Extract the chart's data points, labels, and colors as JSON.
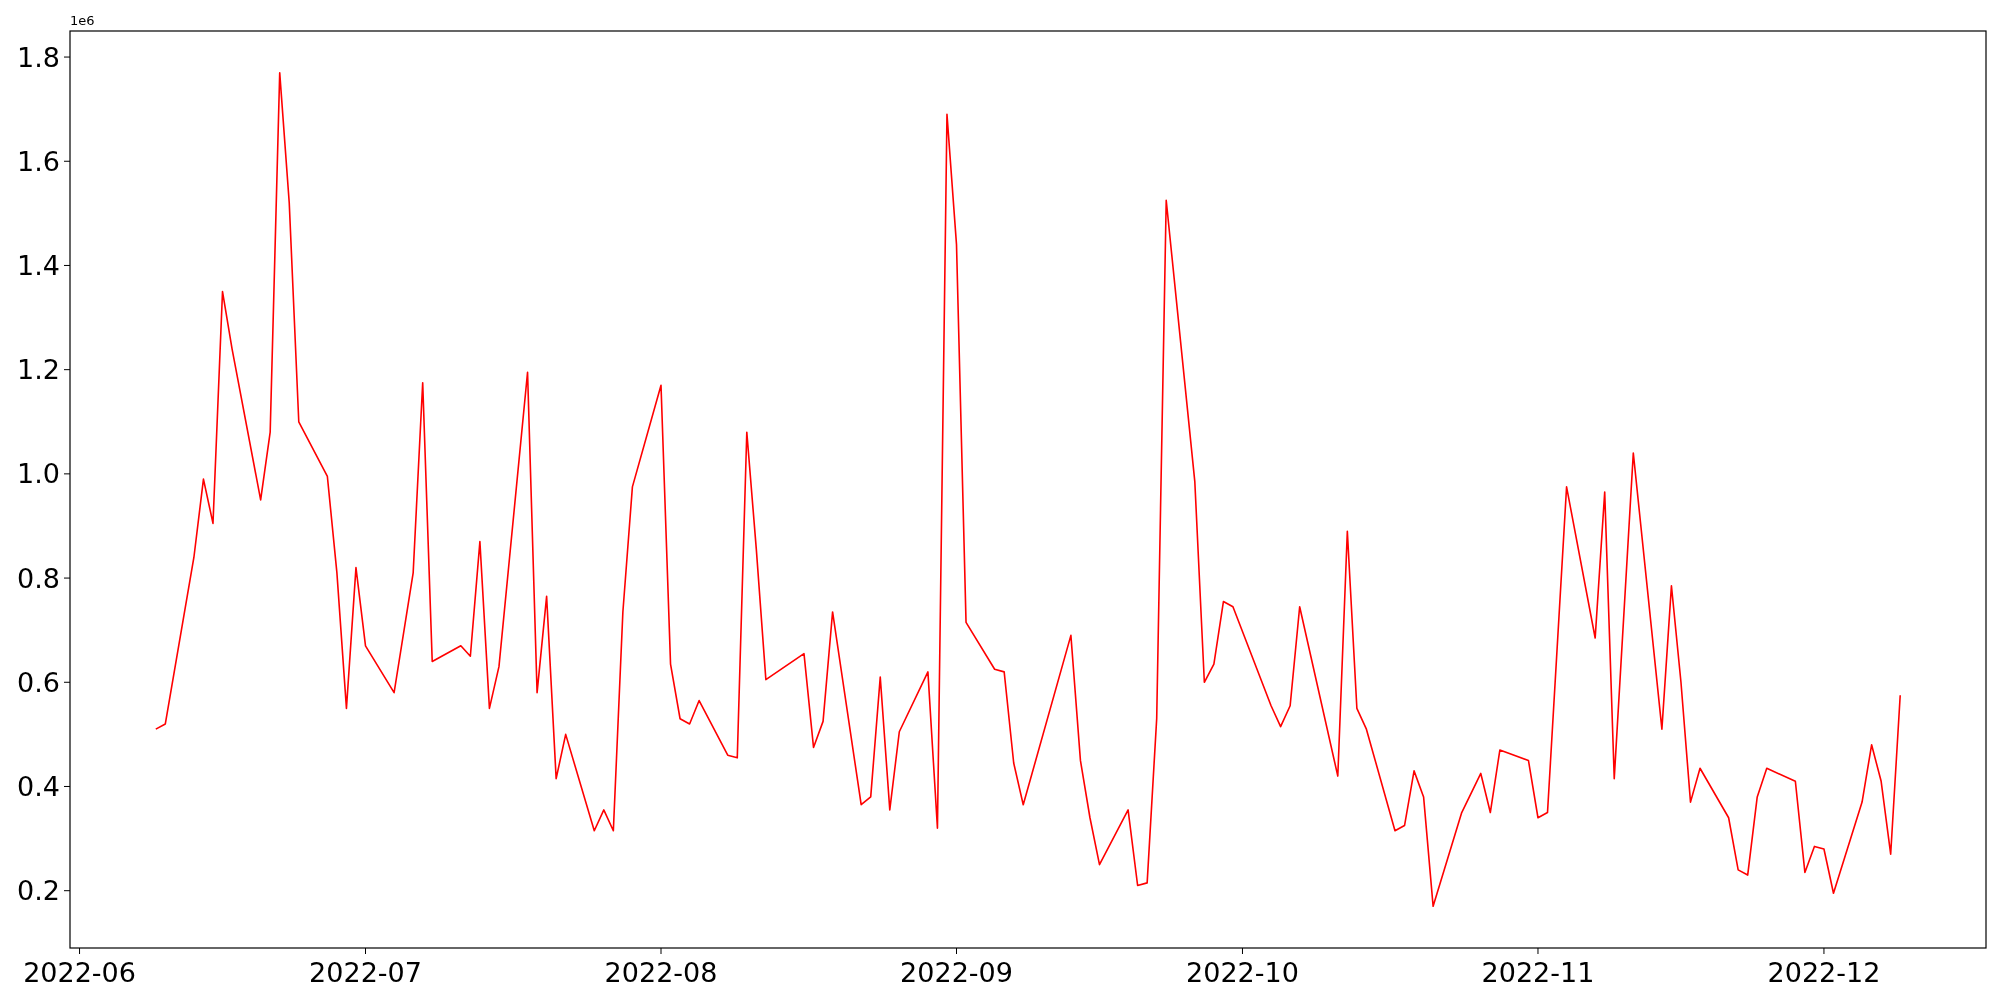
{
  "chart_data": {
    "type": "line",
    "annotations": [
      "1e6"
    ],
    "x": [
      "2022-06-09",
      "2022-06-10",
      "2022-06-13",
      "2022-06-14",
      "2022-06-15",
      "2022-06-16",
      "2022-06-17",
      "2022-06-20",
      "2022-06-21",
      "2022-06-22",
      "2022-06-23",
      "2022-06-24",
      "2022-06-27",
      "2022-06-28",
      "2022-06-29",
      "2022-06-30",
      "2022-07-01",
      "2022-07-04",
      "2022-07-06",
      "2022-07-07",
      "2022-07-08",
      "2022-07-11",
      "2022-07-12",
      "2022-07-13",
      "2022-07-14",
      "2022-07-15",
      "2022-07-18",
      "2022-07-19",
      "2022-07-20",
      "2022-07-21",
      "2022-07-22",
      "2022-07-25",
      "2022-07-26",
      "2022-07-27",
      "2022-07-28",
      "2022-07-29",
      "2022-08-01",
      "2022-08-02",
      "2022-08-03",
      "2022-08-04",
      "2022-08-05",
      "2022-08-08",
      "2022-08-09",
      "2022-08-10",
      "2022-08-11",
      "2022-08-12",
      "2022-08-16",
      "2022-08-17",
      "2022-08-18",
      "2022-08-19",
      "2022-08-22",
      "2022-08-23",
      "2022-08-24",
      "2022-08-25",
      "2022-08-26",
      "2022-08-29",
      "2022-08-30",
      "2022-08-31",
      "2022-09-01",
      "2022-09-02",
      "2022-09-05",
      "2022-09-06",
      "2022-09-07",
      "2022-09-08",
      "2022-09-13",
      "2022-09-14",
      "2022-09-15",
      "2022-09-16",
      "2022-09-19",
      "2022-09-20",
      "2022-09-21",
      "2022-09-22",
      "2022-09-23",
      "2022-09-26",
      "2022-09-27",
      "2022-09-28",
      "2022-09-29",
      "2022-09-30",
      "2022-10-04",
      "2022-10-05",
      "2022-10-06",
      "2022-10-07",
      "2022-10-11",
      "2022-10-12",
      "2022-10-13",
      "2022-10-14",
      "2022-10-17",
      "2022-10-18",
      "2022-10-19",
      "2022-10-20",
      "2022-10-21",
      "2022-10-24",
      "2022-10-26",
      "2022-10-27",
      "2022-10-28",
      "2022-10-31",
      "2022-11-01",
      "2022-11-02",
      "2022-11-04",
      "2022-11-07",
      "2022-11-08",
      "2022-11-09",
      "2022-11-11",
      "2022-11-14",
      "2022-11-15",
      "2022-11-16",
      "2022-11-17",
      "2022-11-18",
      "2022-11-21",
      "2022-11-22",
      "2022-11-23",
      "2022-11-24",
      "2022-11-25",
      "2022-11-28",
      "2022-11-29",
      "2022-11-30",
      "2022-12-01",
      "2022-12-02",
      "2022-12-05",
      "2022-12-06",
      "2022-12-07",
      "2022-12-08",
      "2022-12-09"
    ],
    "series": [
      {
        "color": "#ff0000",
        "values": [
          0.51,
          0.52,
          0.84,
          0.99,
          0.905,
          1.35,
          1.24,
          0.95,
          1.08,
          1.77,
          1.52,
          1.1,
          0.995,
          0.81,
          0.55,
          0.82,
          0.67,
          0.58,
          0.81,
          1.175,
          0.64,
          0.67,
          0.65,
          0.87,
          0.55,
          0.63,
          1.195,
          0.58,
          0.765,
          0.415,
          0.5,
          0.315,
          0.355,
          0.315,
          0.735,
          0.975,
          1.17,
          0.635,
          0.53,
          0.52,
          0.565,
          0.46,
          0.455,
          1.08,
          0.855,
          0.605,
          0.655,
          0.475,
          0.525,
          0.735,
          0.365,
          0.38,
          0.61,
          0.355,
          0.505,
          0.62,
          0.32,
          1.69,
          1.44,
          0.715,
          0.625,
          0.62,
          0.445,
          0.365,
          0.69,
          0.45,
          0.34,
          0.25,
          0.355,
          0.21,
          0.215,
          0.53,
          1.525,
          0.985,
          0.6,
          0.635,
          0.755,
          0.745,
          0.555,
          0.515,
          0.555,
          0.745,
          0.42,
          0.89,
          0.55,
          0.51,
          0.315,
          0.325,
          0.43,
          0.38,
          0.17,
          0.35,
          0.425,
          0.35,
          0.47,
          0.45,
          0.34,
          0.35,
          0.975,
          0.685,
          0.965,
          0.415,
          1.04,
          0.51,
          0.785,
          0.6,
          0.37,
          0.435,
          0.34,
          0.24,
          0.23,
          0.38,
          0.435,
          0.41,
          0.235,
          0.285,
          0.28,
          0.195,
          0.37,
          0.48,
          0.41,
          0.27,
          0.575
        ]
      }
    ],
    "xlim": [
      "2022-05-31",
      "2022-12-18"
    ],
    "xticks": [
      {
        "value": "2022-06-01",
        "label": "2022-06"
      },
      {
        "value": "2022-07-01",
        "label": "2022-07"
      },
      {
        "value": "2022-08-01",
        "label": "2022-08"
      },
      {
        "value": "2022-09-01",
        "label": "2022-09"
      },
      {
        "value": "2022-10-01",
        "label": "2022-10"
      },
      {
        "value": "2022-11-01",
        "label": "2022-11"
      },
      {
        "value": "2022-12-01",
        "label": "2022-12"
      }
    ],
    "ylim": [
      0.09,
      1.85
    ],
    "yticks": [
      0.2,
      0.4,
      0.6,
      0.8,
      {
        "value": 1,
        "label": "1.0"
      },
      1.2,
      1.4,
      1.6,
      1.8
    ],
    "grid": false,
    "marker": "none",
    "line_style": "solid"
  }
}
